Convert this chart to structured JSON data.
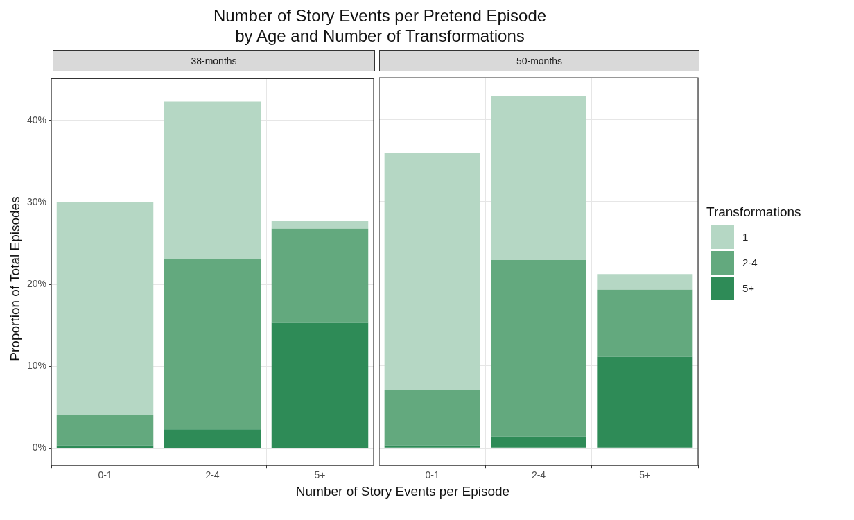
{
  "chart_data": [
    {
      "type": "bar",
      "title": "Number of Story Events per Pretend Episode\nby Age and Number of Transformations",
      "subtitle": "38-months",
      "xlabel": "Number of Story Events per Episode",
      "ylabel": "Proportion of Total Episodes",
      "categories": [
        "0-1",
        "2-4",
        "5+"
      ],
      "stacked": true,
      "series": [
        {
          "color": "#2e8b57",
          "values": [
            0.3,
            2.3,
            15.3
          ]
        },
        {
          "color": "#63a97e",
          "values": [
            3.8,
            20.8,
            11.5
          ]
        },
        {
          "color": "#b5d7c4",
          "values": [
            25.9,
            19.2,
            0.9
          ]
        }
      ],
      "ylim": [
        -2.1,
        45.1
      ],
      "yticks": [
        {
          "value": 0,
          "label": "0%"
        },
        {
          "value": 10,
          "label": "10%"
        },
        {
          "value": 20,
          "label": "20%"
        },
        {
          "value": 30,
          "label": "30%"
        },
        {
          "value": 40,
          "label": "40%"
        }
      ],
      "grid": true,
      "legend": false
    },
    {
      "type": "bar",
      "subtitle": "50-months",
      "categories": [
        "0-1",
        "2-4",
        "5+"
      ],
      "stacked": true,
      "legend_title": "Transformations",
      "series": [
        {
          "name": "5+",
          "color": "#2e8b57",
          "values": [
            0.3,
            1.4,
            11.1
          ]
        },
        {
          "name": "2-4",
          "color": "#63a97e",
          "values": [
            6.8,
            21.5,
            8.2
          ]
        },
        {
          "name": "1",
          "color": "#b5d7c4",
          "values": [
            28.8,
            20.0,
            1.9
          ]
        }
      ],
      "ylim": [
        -2.1,
        45.1
      ],
      "yticks": [
        0,
        10,
        20,
        30,
        40
      ],
      "grid": true,
      "legend": "right",
      "tick_labels": "x"
    }
  ]
}
